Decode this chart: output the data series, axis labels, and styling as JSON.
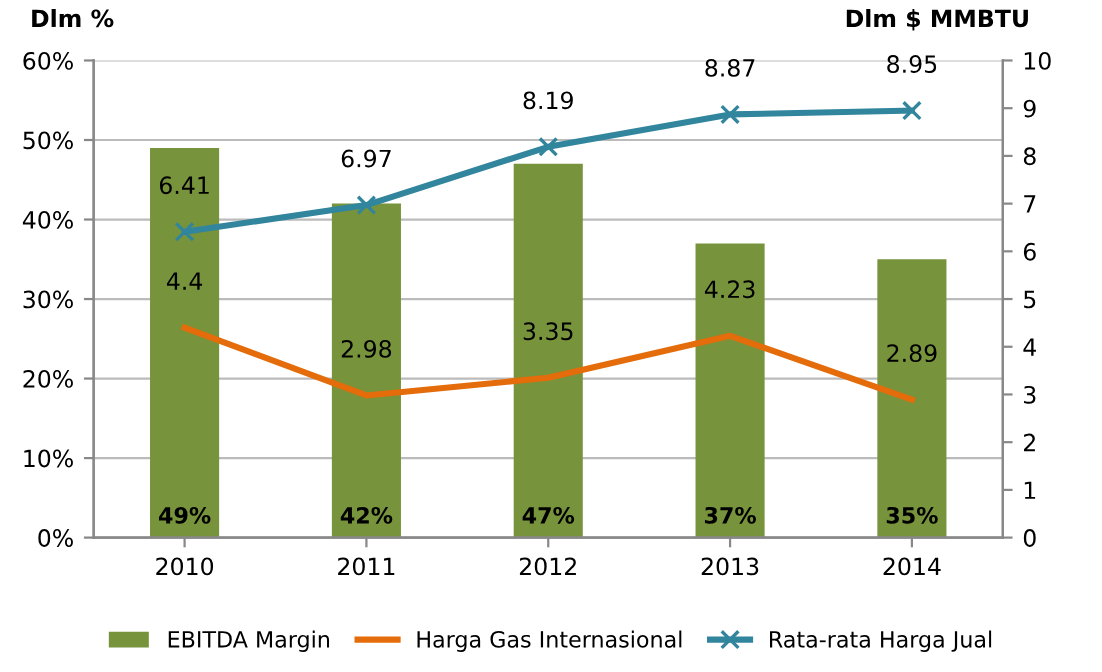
{
  "chart_data": {
    "type": "bar",
    "ylabel": "Dlm %",
    "y2label": "Dlm $ MMBTU",
    "categories": [
      "2010",
      "2011",
      "2012",
      "2013",
      "2014"
    ],
    "series": [
      {
        "name": "EBITDA Margin",
        "color": "#77933c",
        "values": [
          49,
          42,
          47,
          37,
          35
        ],
        "value_labels": [
          "49%",
          "42%",
          "47%",
          "37%",
          "35%"
        ]
      },
      {
        "name": "Harga Gas Internasional",
        "type": "line",
        "axis": "y2",
        "color": "#e46c0a",
        "marker": "none",
        "values": [
          4.4,
          2.98,
          3.35,
          4.23,
          2.89
        ],
        "value_labels": [
          "4.4",
          "2.98",
          "3.35",
          "4.23",
          "2.89"
        ]
      },
      {
        "name": "Rata-rata Harga Jual",
        "type": "line",
        "axis": "y2",
        "color": "#31859c",
        "marker": "cross",
        "values": [
          6.41,
          6.97,
          8.19,
          8.87,
          8.95
        ],
        "value_labels": [
          "6.41",
          "6.97",
          "8.19",
          "8.87",
          "8.95"
        ]
      }
    ],
    "ylim": [
      0,
      60
    ],
    "yticks": [
      {
        "value": 0,
        "label": "0%"
      },
      {
        "value": 10,
        "label": "10%"
      },
      {
        "value": 20,
        "label": "20%"
      },
      {
        "value": 30,
        "label": "30%"
      },
      {
        "value": 40,
        "label": "40%"
      },
      {
        "value": 50,
        "label": "50%"
      },
      {
        "value": 60,
        "label": "60%"
      }
    ],
    "y2lim": [
      0,
      10
    ],
    "y2ticks": [
      0,
      1,
      2,
      3,
      4,
      5,
      6,
      7,
      8,
      9,
      10
    ],
    "grid": "y",
    "legend": "bottom"
  }
}
